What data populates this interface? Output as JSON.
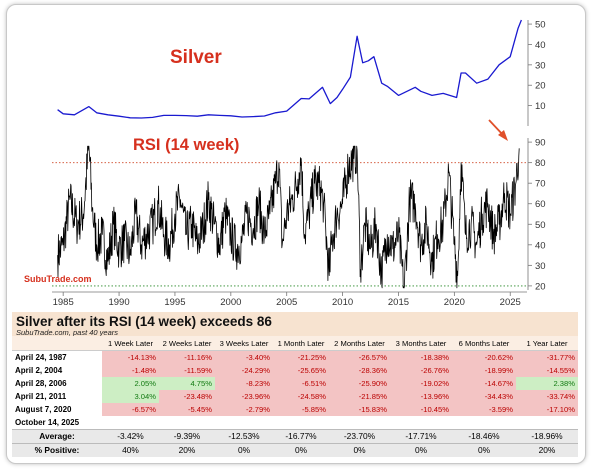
{
  "chart_data": [
    {
      "type": "line",
      "title": "Silver",
      "xlim": [
        1984,
        2026.5
      ],
      "ylim": [
        0,
        52
      ],
      "y_ticks": [
        10,
        20,
        30,
        40,
        50
      ],
      "x_ticks": [
        1985,
        1990,
        1995,
        2000,
        2005,
        2010,
        2015,
        2020,
        2025
      ],
      "color": "#1a1ad0",
      "series": [
        {
          "x": [
            1984.5,
            1985,
            1986,
            1987.3,
            1988,
            1989,
            1990,
            1991,
            1992,
            1993,
            1994,
            1995,
            1996,
            1997,
            1998,
            1999,
            2000,
            2001,
            2002,
            2003,
            2004,
            2005,
            2006.3,
            2007,
            2008.2,
            2008.9,
            2009.5,
            2010,
            2010.7,
            2011.3,
            2011.8,
            2012.3,
            2012.8,
            2013.5,
            2014,
            2015,
            2016.5,
            2017,
            2018,
            2019,
            2020.2,
            2020.6,
            2021,
            2022,
            2023,
            2024,
            2025,
            2025.7,
            2026
          ],
          "y": [
            8,
            6,
            5.5,
            9.5,
            6.5,
            5.5,
            4.8,
            4,
            3.9,
            4.2,
            5.2,
            5.2,
            5.1,
            4.8,
            5.5,
            5.2,
            5,
            4.4,
            4.6,
            4.9,
            6.5,
            7.3,
            13.5,
            13.3,
            19,
            11,
            14,
            18,
            24,
            44,
            31,
            32,
            34,
            21,
            19.5,
            15,
            19,
            17,
            15,
            16,
            14,
            26,
            26,
            21,
            23,
            30,
            34,
            48,
            52
          ]
        }
      ]
    },
    {
      "type": "line",
      "title": "RSI (14 week)",
      "xlim": [
        1984,
        2026.5
      ],
      "ylim": [
        18,
        92
      ],
      "y_ticks": [
        20,
        30,
        40,
        50,
        60,
        70,
        80,
        90
      ],
      "color": "#000000",
      "reference_lines": [
        {
          "y": 80,
          "style": "dotted",
          "color": "#d04a2a"
        },
        {
          "y": 20,
          "style": "dotted",
          "color": "#2a8a2a"
        }
      ],
      "series": [
        {
          "x": [
            1984.5,
            1985,
            1985.6,
            1986.2,
            1986.8,
            1987.3,
            1987.6,
            1988,
            1988.5,
            1989,
            1989.5,
            1990,
            1990.5,
            1991,
            1991.5,
            1992,
            1992.5,
            1993,
            1993.5,
            1994,
            1994.5,
            1995,
            1995.5,
            1996,
            1996.5,
            1997,
            1997.5,
            1998,
            1998.5,
            1999,
            1999.5,
            2000,
            2000.5,
            2001,
            2001.5,
            2002,
            2002.5,
            2003,
            2003.5,
            2004,
            2004.3,
            2004.6,
            2005,
            2005.5,
            2006,
            2006.3,
            2006.6,
            2007,
            2007.5,
            2008,
            2008.3,
            2008.8,
            2009,
            2009.5,
            2010,
            2010.5,
            2011,
            2011.3,
            2011.6,
            2012,
            2012.5,
            2013,
            2013.5,
            2014,
            2014.5,
            2015,
            2015.5,
            2016,
            2016.5,
            2017,
            2017.5,
            2018,
            2018.5,
            2019,
            2019.5,
            2020,
            2020.3,
            2020.6,
            2021,
            2021.5,
            2022,
            2022.5,
            2023,
            2023.5,
            2024,
            2024.5,
            2025,
            2025.5,
            2025.8
          ],
          "y": [
            35,
            40,
            62,
            50,
            55,
            88,
            58,
            40,
            45,
            32,
            50,
            38,
            42,
            35,
            55,
            40,
            45,
            50,
            60,
            45,
            40,
            55,
            62,
            45,
            50,
            40,
            48,
            62,
            50,
            40,
            55,
            45,
            38,
            42,
            55,
            48,
            60,
            45,
            55,
            70,
            80,
            40,
            55,
            62,
            72,
            82,
            45,
            55,
            70,
            68,
            60,
            25,
            40,
            55,
            60,
            78,
            82,
            86,
            28,
            50,
            38,
            50,
            25,
            45,
            38,
            45,
            18,
            62,
            60,
            40,
            50,
            32,
            45,
            50,
            75,
            40,
            25,
            80,
            45,
            50,
            40,
            55,
            60,
            45,
            50,
            65,
            55,
            70,
            87
          ]
        }
      ],
      "annotation": "SubuTrade.com"
    },
    {
      "type": "table",
      "title": "Silver after its RSI (14 week) exceeds 86",
      "subtitle": "SubuTrade.com, past 40 years",
      "columns": [
        "1 Week Later",
        "2 Weeks Later",
        "3 Weeks Later",
        "1 Month Later",
        "2 Months Later",
        "3 Months Later",
        "6 Months Later",
        "1 Year Later"
      ],
      "rows": [
        {
          "date": "April 24, 1987",
          "values": [
            "-14.13%",
            "-11.16%",
            "-3.40%",
            "-21.25%",
            "-26.57%",
            "-18.38%",
            "-20.62%",
            "-31.77%"
          ]
        },
        {
          "date": "April 2, 2004",
          "values": [
            "-1.48%",
            "-11.59%",
            "-24.29%",
            "-25.65%",
            "-28.36%",
            "-26.76%",
            "-18.99%",
            "-14.55%"
          ]
        },
        {
          "date": "April 28, 2006",
          "values": [
            "2.05%",
            "4.75%",
            "-8.23%",
            "-6.51%",
            "-25.90%",
            "-19.02%",
            "-14.67%",
            "2.38%"
          ]
        },
        {
          "date": "April 21, 2011",
          "values": [
            "3.04%",
            "-23.48%",
            "-23.96%",
            "-24.58%",
            "-21.85%",
            "-13.96%",
            "-34.43%",
            "-33.74%"
          ]
        },
        {
          "date": "August 7, 2020",
          "values": [
            "-6.57%",
            "-5.45%",
            "-2.79%",
            "-5.85%",
            "-15.83%",
            "-10.45%",
            "-3.59%",
            "-17.10%"
          ]
        },
        {
          "date": "October 14, 2025",
          "values": [
            "",
            "",
            "",
            "",
            "",
            "",
            "",
            ""
          ]
        }
      ],
      "summary": [
        {
          "label": "Average:",
          "values": [
            "-3.42%",
            "-9.39%",
            "-12.53%",
            "-16.77%",
            "-23.70%",
            "-17.71%",
            "-18.46%",
            "-18.96%"
          ]
        },
        {
          "label": "% Positive:",
          "values": [
            "40%",
            "20%",
            "0%",
            "0%",
            "0%",
            "0%",
            "0%",
            "20%"
          ]
        }
      ]
    }
  ],
  "colors": {
    "positive_bg": "#cdeec4",
    "positive_text": "#127a12",
    "negative_bg": "#f3c4c4",
    "negative_text": "#b00000",
    "title_red": "#d6301e",
    "arrow": "#e0502a"
  }
}
